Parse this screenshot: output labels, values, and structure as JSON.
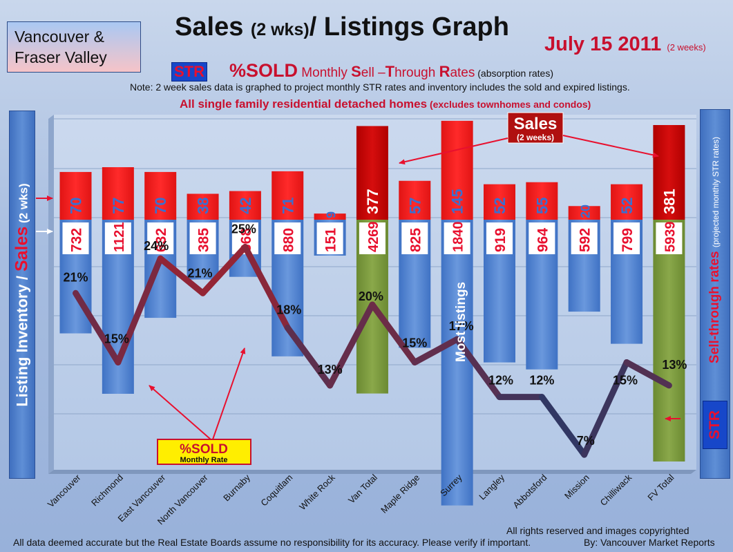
{
  "header": {
    "region_line1": "Vancouver &",
    "region_line2": "Fraser Valley",
    "title_main": "Sales ",
    "title_small": "(2 wks)",
    "title_tail": "/ Listings Graph",
    "date_main": "July 15 2011",
    "date_small": "(2 weeks)",
    "str_badge": "STR",
    "sold_big": "%SOLD",
    "sold_rest_1": " Monthly ",
    "sold_s": "S",
    "sold_rest_2": "ell –",
    "sold_t": "T",
    "sold_rest_3": "hrough ",
    "sold_r": "R",
    "sold_rest_4": "ates",
    "sold_small": " (absorption rates)",
    "note": "Note: 2 week sales data is graphed to project monthly STR rates and inventory includes the sold and expired listings.",
    "subtitle_main": "All single family residential detached homes",
    "subtitle_small": " (excludes townhomes and condos)"
  },
  "left_axis": {
    "part1": "Listing Inventory ",
    "part2": "/ ",
    "part3": "Sales",
    "part4": " (2 wks)"
  },
  "right_axis": {
    "title": "Sell-through rates",
    "small": "(projected monthly STR rates)",
    "str": "STR"
  },
  "annotations": {
    "sales_label": "Sales",
    "sales_small": "(2 weeks)",
    "sold_label": "%SOLD",
    "sold_small": "Monthly Rate",
    "most_listings": "Most listings"
  },
  "footer": {
    "disclaimer": "All data deemed accurate but the Real Estate Boards assume no responsibility for its accuracy.  Please verify if important.",
    "rights": "All rights reserved and  images copyrighted",
    "byline": "By: Vancouver Market Reports"
  },
  "colors": {
    "sales_bar": "#e41b1b",
    "sales_bar_total": "#c40000",
    "listing_bar": "#4f82d0",
    "listing_bar_total": "#7b9a3d",
    "line_high": "#a3222e",
    "line_low": "#1f3a6b"
  },
  "chart_data": {
    "type": "bar",
    "categories": [
      "Vancouver",
      "Richmond",
      "East Vancouver",
      "North Vancouver",
      "Burnaby",
      "Coquitlam",
      "White Rock",
      "Van Total",
      "Maple Ridge",
      "Surrey",
      "Langley",
      "Abbotsford",
      "Mission",
      "Chilliwack",
      "FV Total"
    ],
    "series": [
      {
        "name": "Sales",
        "values": [
          70,
          77,
          70,
          38,
          42,
          71,
          9,
          377,
          57,
          145,
          52,
          55,
          20,
          52,
          381
        ]
      },
      {
        "name": "Listings",
        "values": [
          732,
          1121,
          632,
          385,
          368,
          880,
          151,
          4269,
          825,
          1840,
          919,
          964,
          592,
          799,
          5939
        ]
      },
      {
        "name": "STR",
        "values": [
          21,
          15,
          24,
          21,
          25,
          18,
          13,
          20,
          15,
          17,
          12,
          12,
          7,
          15,
          13
        ]
      }
    ],
    "str_labels": [
      "21%",
      "15%",
      "24%",
      "21%",
      "25%",
      "18%",
      "13%",
      "20%",
      "15%",
      "17%",
      "12%",
      "12%",
      "7%",
      "15%",
      "13%"
    ],
    "totals": [
      "Van Total",
      "FV Total"
    ],
    "grid": true
  }
}
